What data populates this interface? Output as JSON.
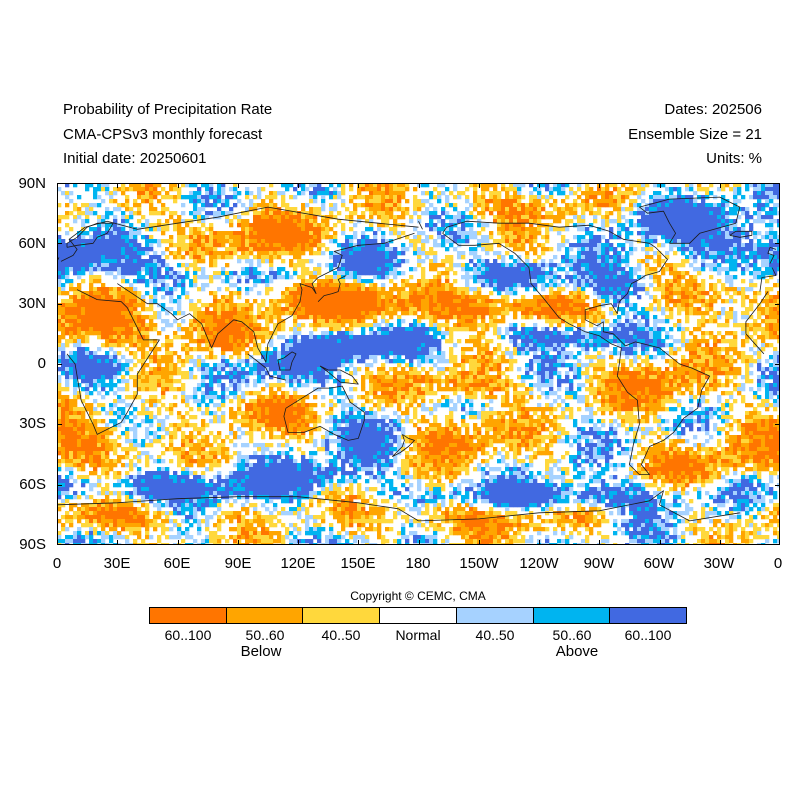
{
  "header": {
    "title_line1": "Probability of Precipitation Rate",
    "title_line2": "CMA-CPSv3 monthly forecast",
    "title_line3": "Initial date: 20250601",
    "dates": "Dates: 202506",
    "ensemble": "Ensemble Size = 21",
    "units": "Units: %"
  },
  "map": {
    "projection": "cylindrical equidistant",
    "lon_range": [
      0,
      360
    ],
    "lat_range": [
      -90,
      90
    ],
    "lat_labels": [
      "90N",
      "60N",
      "30N",
      "0",
      "30S",
      "60S",
      "90S"
    ],
    "lon_labels": [
      "0",
      "30E",
      "60E",
      "90E",
      "120E",
      "150E",
      "180",
      "150W",
      "120W",
      "90W",
      "60W",
      "30W",
      "0"
    ]
  },
  "copyright": "Copyright © CEMC, CMA",
  "legend": {
    "classes": [
      {
        "label": "60..100",
        "color": "#ff7500"
      },
      {
        "label": "50..60",
        "color": "#ffa500"
      },
      {
        "label": "40..50",
        "color": "#ffd83c"
      },
      {
        "label": "Normal",
        "color": "#ffffff"
      },
      {
        "label": "40..50",
        "color": "#a6d2ff"
      },
      {
        "label": "50..60",
        "color": "#00b4f0"
      },
      {
        "label": "60..100",
        "color": "#4169e1"
      }
    ],
    "below_label": "Below",
    "above_label": "Above"
  }
}
